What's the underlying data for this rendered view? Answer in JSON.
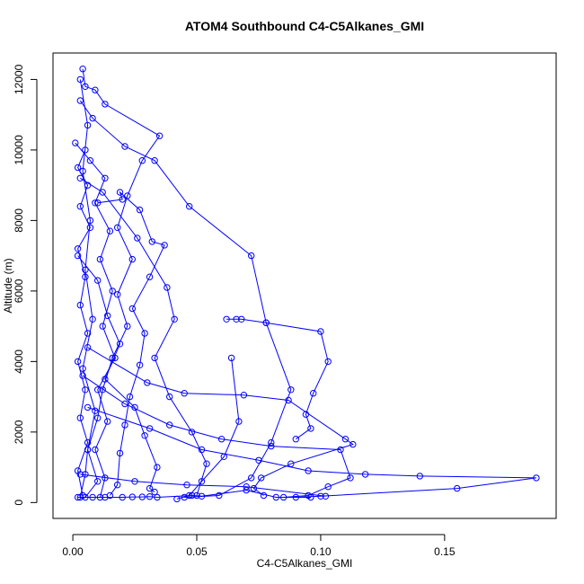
{
  "chart_data": {
    "type": "line",
    "title": "ATOM4 Southbound C4-C5Alkanes_GMI",
    "xlabel": "C4-C5Alkanes_GMI",
    "ylabel": "Altitude (m)",
    "xlim": [
      -0.008,
      0.195
    ],
    "ylim": [
      -450,
      12750
    ],
    "x_ticks": [
      0.0,
      0.05,
      0.1,
      0.15
    ],
    "x_tick_labels": [
      "0.00",
      "0.05",
      "0.10",
      "0.15"
    ],
    "y_ticks": [
      0,
      2000,
      4000,
      6000,
      8000,
      10000,
      12000
    ],
    "y_tick_labels": [
      "0",
      "2000",
      "4000",
      "6000",
      "8000",
      "10000",
      "12000"
    ],
    "grid": false,
    "legend": "none",
    "colors": {
      "series": "#0000ff",
      "axes": "#000000",
      "background": "#ffffff"
    },
    "marker": "open-circle",
    "series": [
      {
        "values": [
          [
            0.005,
            150
          ],
          [
            0.01,
            600
          ],
          [
            0.006,
            1500
          ],
          [
            0.009,
            2600
          ],
          [
            0.004,
            3800
          ],
          [
            0.008,
            5200
          ],
          [
            0.005,
            6600
          ],
          [
            0.007,
            8000
          ],
          [
            0.004,
            9400
          ],
          [
            0.006,
            10700
          ],
          [
            0.003,
            12000
          ]
        ]
      },
      {
        "values": [
          [
            0.004,
            12300
          ],
          [
            0.005,
            11800
          ],
          [
            0.009,
            11700
          ],
          [
            0.013,
            11300
          ],
          [
            0.035,
            10400
          ],
          [
            0.028,
            9700
          ],
          [
            0.022,
            8700
          ],
          [
            0.018,
            7800
          ],
          [
            0.024,
            6900
          ],
          [
            0.018,
            5900
          ],
          [
            0.022,
            5000
          ],
          [
            0.016,
            4100
          ],
          [
            0.012,
            3200
          ],
          [
            0.01,
            2400
          ],
          [
            0.006,
            1500
          ],
          [
            0.005,
            800
          ],
          [
            0.003,
            150
          ]
        ]
      },
      {
        "values": [
          [
            0.003,
            11400
          ],
          [
            0.008,
            10900
          ],
          [
            0.021,
            10100
          ],
          [
            0.033,
            9700
          ],
          [
            0.047,
            8400
          ],
          [
            0.072,
            7000
          ],
          [
            0.078,
            5100
          ],
          [
            0.088,
            3200
          ],
          [
            0.08,
            1700
          ],
          [
            0.072,
            700
          ],
          [
            0.059,
            200
          ],
          [
            0.045,
            150
          ]
        ]
      },
      {
        "values": [
          [
            0.062,
            5200
          ],
          [
            0.066,
            5200
          ],
          [
            0.068,
            5200
          ],
          [
            0.078,
            5100
          ],
          [
            0.1,
            4850
          ],
          [
            0.103,
            4000
          ],
          [
            0.097,
            3100
          ],
          [
            0.094,
            2500
          ],
          [
            0.096,
            2100
          ],
          [
            0.09,
            1800
          ]
        ]
      },
      {
        "values": [
          [
            0.064,
            4100
          ],
          [
            0.067,
            2300
          ],
          [
            0.061,
            1300
          ],
          [
            0.052,
            600
          ],
          [
            0.047,
            200
          ],
          [
            0.042,
            100
          ]
        ]
      },
      {
        "values": [
          [
            0.003,
            9200
          ],
          [
            0.012,
            8800
          ],
          [
            0.026,
            7500
          ],
          [
            0.038,
            6100
          ],
          [
            0.041,
            5200
          ],
          [
            0.033,
            4100
          ],
          [
            0.039,
            3000
          ],
          [
            0.048,
            2000
          ],
          [
            0.054,
            1100
          ],
          [
            0.05,
            200
          ]
        ]
      },
      {
        "values": [
          [
            0.006,
            4400
          ],
          [
            0.03,
            3400
          ],
          [
            0.045,
            3100
          ],
          [
            0.069,
            3050
          ],
          [
            0.087,
            2900
          ],
          [
            0.11,
            1800
          ],
          [
            0.113,
            1650
          ],
          [
            0.088,
            1100
          ],
          [
            0.076,
            700
          ],
          [
            0.073,
            400
          ],
          [
            0.077,
            200
          ]
        ]
      },
      {
        "values": [
          [
            0.004,
            3600
          ],
          [
            0.021,
            2800
          ],
          [
            0.039,
            2200
          ],
          [
            0.06,
            1800
          ],
          [
            0.08,
            1600
          ],
          [
            0.108,
            1500
          ],
          [
            0.112,
            700
          ],
          [
            0.103,
            450
          ],
          [
            0.095,
            200
          ],
          [
            0.085,
            150
          ]
        ]
      },
      {
        "values": [
          [
            0.006,
            2700
          ],
          [
            0.031,
            2100
          ],
          [
            0.052,
            1500
          ],
          [
            0.075,
            1200
          ],
          [
            0.095,
            900
          ],
          [
            0.118,
            800
          ],
          [
            0.14,
            750
          ],
          [
            0.187,
            700
          ],
          [
            0.155,
            400
          ],
          [
            0.1,
            180
          ],
          [
            0.09,
            150
          ]
        ]
      },
      {
        "values": [
          [
            0.003,
            800
          ],
          [
            0.025,
            600
          ],
          [
            0.046,
            500
          ],
          [
            0.07,
            450
          ],
          [
            0.102,
            180
          ]
        ]
      },
      {
        "values": [
          [
            0.002,
            150
          ],
          [
            0.008,
            150
          ],
          [
            0.013,
            150
          ],
          [
            0.02,
            150
          ],
          [
            0.024,
            160
          ],
          [
            0.028,
            160
          ],
          [
            0.031,
            170
          ],
          [
            0.034,
            150
          ],
          [
            0.048,
            200
          ],
          [
            0.052,
            180
          ],
          [
            0.07,
            350
          ],
          [
            0.082,
            150
          ],
          [
            0.096,
            150
          ]
        ]
      },
      {
        "values": [
          [
            0.002,
            7000
          ],
          [
            0.01,
            6300
          ],
          [
            0.014,
            5300
          ],
          [
            0.019,
            4500
          ],
          [
            0.013,
            3500
          ],
          [
            0.025,
            2700
          ],
          [
            0.029,
            1900
          ],
          [
            0.034,
            1000
          ],
          [
            0.031,
            400
          ],
          [
            0.033,
            300
          ]
        ]
      },
      {
        "values": [
          [
            0.01,
            8500
          ],
          [
            0.02,
            8600
          ],
          [
            0.019,
            8800
          ],
          [
            0.027,
            8300
          ],
          [
            0.032,
            7400
          ],
          [
            0.037,
            7300
          ],
          [
            0.031,
            6400
          ],
          [
            0.024,
            5500
          ],
          [
            0.029,
            4800
          ],
          [
            0.027,
            3900
          ],
          [
            0.023,
            3000
          ],
          [
            0.021,
            2200
          ],
          [
            0.019,
            1400
          ],
          [
            0.018,
            500
          ],
          [
            0.015,
            200
          ]
        ]
      },
      {
        "values": [
          [
            0.001,
            10200
          ],
          [
            0.007,
            9700
          ],
          [
            0.013,
            9200
          ],
          [
            0.009,
            8500
          ],
          [
            0.015,
            7700
          ],
          [
            0.011,
            6900
          ],
          [
            0.016,
            6000
          ],
          [
            0.012,
            5000
          ],
          [
            0.017,
            4100
          ],
          [
            0.01,
            3200
          ],
          [
            0.014,
            2300
          ],
          [
            0.009,
            1500
          ],
          [
            0.013,
            700
          ],
          [
            0.011,
            150
          ]
        ]
      },
      {
        "values": [
          [
            0.005,
            10000
          ],
          [
            0.002,
            9500
          ],
          [
            0.006,
            9000
          ],
          [
            0.003,
            8400
          ],
          [
            0.007,
            7800
          ],
          [
            0.002,
            7200
          ],
          [
            0.005,
            6400
          ],
          [
            0.003,
            5600
          ],
          [
            0.006,
            4800
          ],
          [
            0.002,
            4000
          ],
          [
            0.005,
            3200
          ],
          [
            0.003,
            2400
          ],
          [
            0.006,
            1700
          ],
          [
            0.002,
            900
          ],
          [
            0.004,
            200
          ]
        ]
      }
    ]
  }
}
